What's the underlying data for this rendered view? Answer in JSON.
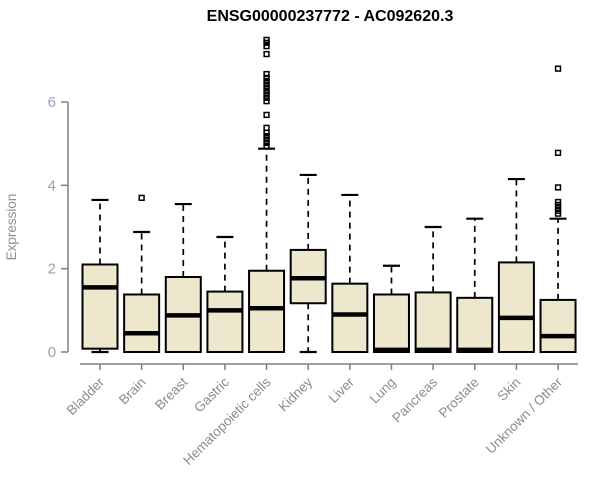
{
  "chart_data": {
    "type": "boxplot",
    "title": "ENSG00000237772 - AC092620.3",
    "xlabel": "",
    "ylabel": "Expression",
    "yticks": [
      0,
      2,
      4,
      6
    ],
    "ylim": [
      0,
      7.6
    ],
    "grid": false,
    "legend": "none",
    "colors": {
      "box_fill": "#EDE8CD",
      "box_border": "#000000",
      "median": "#000000",
      "axis": "#808080",
      "y_tick_label": "#94A3B8",
      "category_label": "#8C8C8C",
      "title": "#000000",
      "background": "#FFFFFF"
    },
    "categories": [
      "Bladder",
      "Brain",
      "Breast",
      "Gastric",
      "Hematopoietic cells",
      "Kidney",
      "Liver",
      "Lung",
      "Pancreas",
      "Prostate",
      "Skin",
      "Unknown / Other"
    ],
    "series": [
      {
        "label": "Bladder",
        "whisker_low": 0.0,
        "q1": 0.08,
        "median": 1.55,
        "q3": 2.1,
        "whisker_high": 3.65,
        "outliers": []
      },
      {
        "label": "Brain",
        "whisker_low": 0.0,
        "q1": 0.0,
        "median": 0.45,
        "q3": 1.38,
        "whisker_high": 2.88,
        "outliers": [
          3.7
        ]
      },
      {
        "label": "Breast",
        "whisker_low": 0.0,
        "q1": 0.0,
        "median": 0.88,
        "q3": 1.8,
        "whisker_high": 3.55,
        "outliers": []
      },
      {
        "label": "Gastric",
        "whisker_low": 0.0,
        "q1": 0.0,
        "median": 1.0,
        "q3": 1.45,
        "whisker_high": 2.76,
        "outliers": []
      },
      {
        "label": "Hematopoietic cells",
        "whisker_low": 0.0,
        "q1": 0.0,
        "median": 1.05,
        "q3": 1.95,
        "whisker_high": 4.88,
        "outliers": [
          4.94,
          5.02,
          5.1,
          5.18,
          5.26,
          5.38,
          5.69,
          6.02,
          6.1,
          6.18,
          6.26,
          6.34,
          6.42,
          6.5,
          6.58,
          6.67,
          7.15,
          7.34,
          7.42,
          7.49
        ]
      },
      {
        "label": "Kidney",
        "whisker_low": 0.0,
        "q1": 1.17,
        "median": 1.77,
        "q3": 2.45,
        "whisker_high": 4.25,
        "outliers": []
      },
      {
        "label": "Liver",
        "whisker_low": 0.0,
        "q1": 0.0,
        "median": 0.9,
        "q3": 1.64,
        "whisker_high": 3.77,
        "outliers": []
      },
      {
        "label": "Lung",
        "whisker_low": 0.0,
        "q1": 0.0,
        "median": 0.05,
        "q3": 1.38,
        "whisker_high": 2.07,
        "outliers": []
      },
      {
        "label": "Pancreas",
        "whisker_low": 0.0,
        "q1": 0.0,
        "median": 0.05,
        "q3": 1.43,
        "whisker_high": 3.0,
        "outliers": []
      },
      {
        "label": "Prostate",
        "whisker_low": 0.0,
        "q1": 0.0,
        "median": 0.05,
        "q3": 1.3,
        "whisker_high": 3.2,
        "outliers": []
      },
      {
        "label": "Skin",
        "whisker_low": 0.0,
        "q1": 0.0,
        "median": 0.82,
        "q3": 2.15,
        "whisker_high": 4.15,
        "outliers": []
      },
      {
        "label": "Unknown / Other",
        "whisker_low": 0.0,
        "q1": 0.0,
        "median": 0.38,
        "q3": 1.25,
        "whisker_high": 3.2,
        "outliers": [
          3.32,
          3.39,
          3.46,
          3.53,
          3.6,
          3.95,
          4.78,
          6.8
        ]
      }
    ]
  }
}
